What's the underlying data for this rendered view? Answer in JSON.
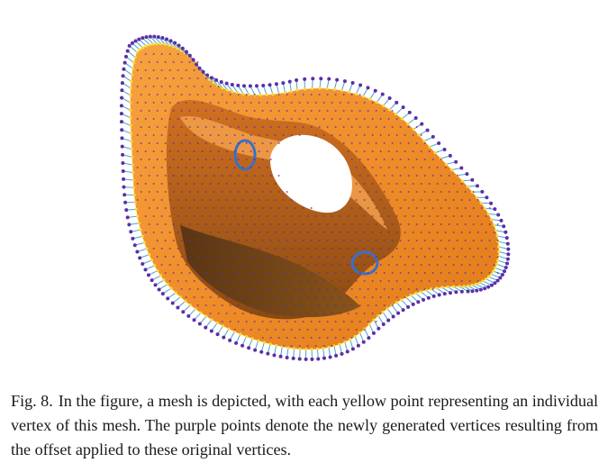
{
  "figure": {
    "label": "Fig. 8.",
    "caption": "In the figure, a mesh is depicted, with each yellow point representing an individual vertex of this mesh. The purple points denote the newly generated vertices resulting from the offset applied to these original vertices.",
    "colors": {
      "surface": "#f0902a",
      "surface_dark": "#b85d10",
      "original_vertex": "#f4dc3c",
      "offset_vertex": "#5a2fa8",
      "offset_line": "#4aa0d8"
    }
  }
}
